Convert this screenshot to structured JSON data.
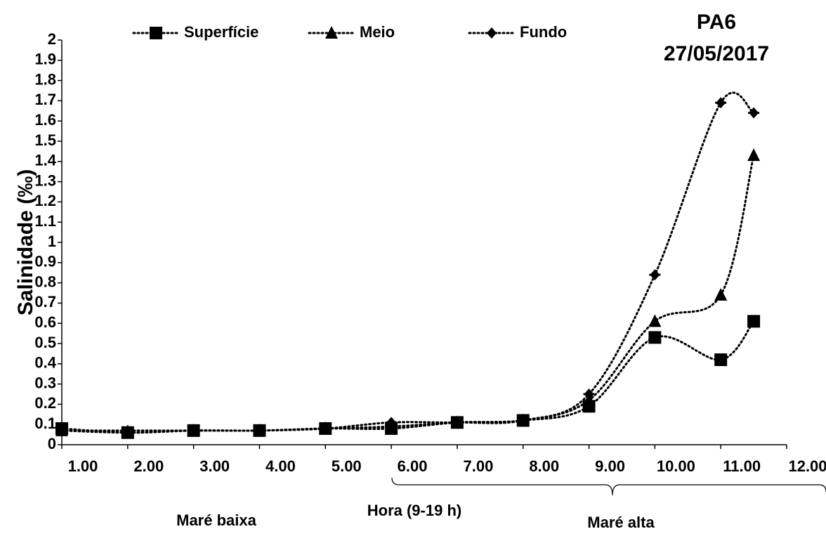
{
  "chart_data": {
    "type": "line",
    "title": "PA6",
    "subtitle": "27/05/2017",
    "y_label": "Salinidade (‰)",
    "annotations": [
      "Maré baixa",
      "Hora (9-19 h)",
      "Maré alta"
    ],
    "x": [
      1,
      2,
      3,
      4,
      5,
      6,
      7,
      8,
      9,
      10,
      11,
      11.5
    ],
    "series": [
      {
        "name": "Superfície",
        "color": "#000000",
        "marker": "square",
        "values": [
          0.08,
          0.06,
          0.07,
          0.07,
          0.08,
          0.08,
          0.11,
          0.12,
          0.19,
          0.53,
          0.42,
          0.61
        ]
      },
      {
        "name": "Meio",
        "color": "#000000",
        "marker": "triangle",
        "values": [
          0.07,
          0.06,
          0.07,
          0.07,
          0.08,
          0.09,
          0.11,
          0.12,
          0.22,
          0.61,
          0.74,
          1.43
        ]
      },
      {
        "name": "Fundo",
        "color": "#000000",
        "marker": "diamond",
        "values": [
          0.07,
          0.07,
          0.07,
          0.07,
          0.08,
          0.11,
          0.11,
          0.12,
          0.25,
          0.84,
          1.69,
          1.64
        ]
      }
    ],
    "xlim": [
      1,
      12
    ],
    "xticks": [
      {
        "value": 1,
        "label": "1.00"
      },
      {
        "value": 2,
        "label": "2.00"
      },
      {
        "value": 3,
        "label": "3.00"
      },
      {
        "value": 4,
        "label": "4.00"
      },
      {
        "value": 5,
        "label": "5.00"
      },
      {
        "value": 6,
        "label": "6.00"
      },
      {
        "value": 7,
        "label": "7.00"
      },
      {
        "value": 8,
        "label": "8.00"
      },
      {
        "value": 9,
        "label": "9.00"
      },
      {
        "value": 10,
        "label": "10.00"
      },
      {
        "value": 11,
        "label": "11.00"
      },
      {
        "value": 12,
        "label": "12.00"
      }
    ],
    "ylim": [
      0,
      2
    ],
    "yticks": [
      0,
      0.1,
      0.2,
      0.3,
      0.4,
      0.5,
      0.6,
      0.7,
      0.8,
      0.9,
      1,
      1.1,
      1.2,
      1.3,
      1.4,
      1.5,
      1.6,
      1.7,
      1.8,
      1.9,
      2
    ],
    "grid": false
  }
}
